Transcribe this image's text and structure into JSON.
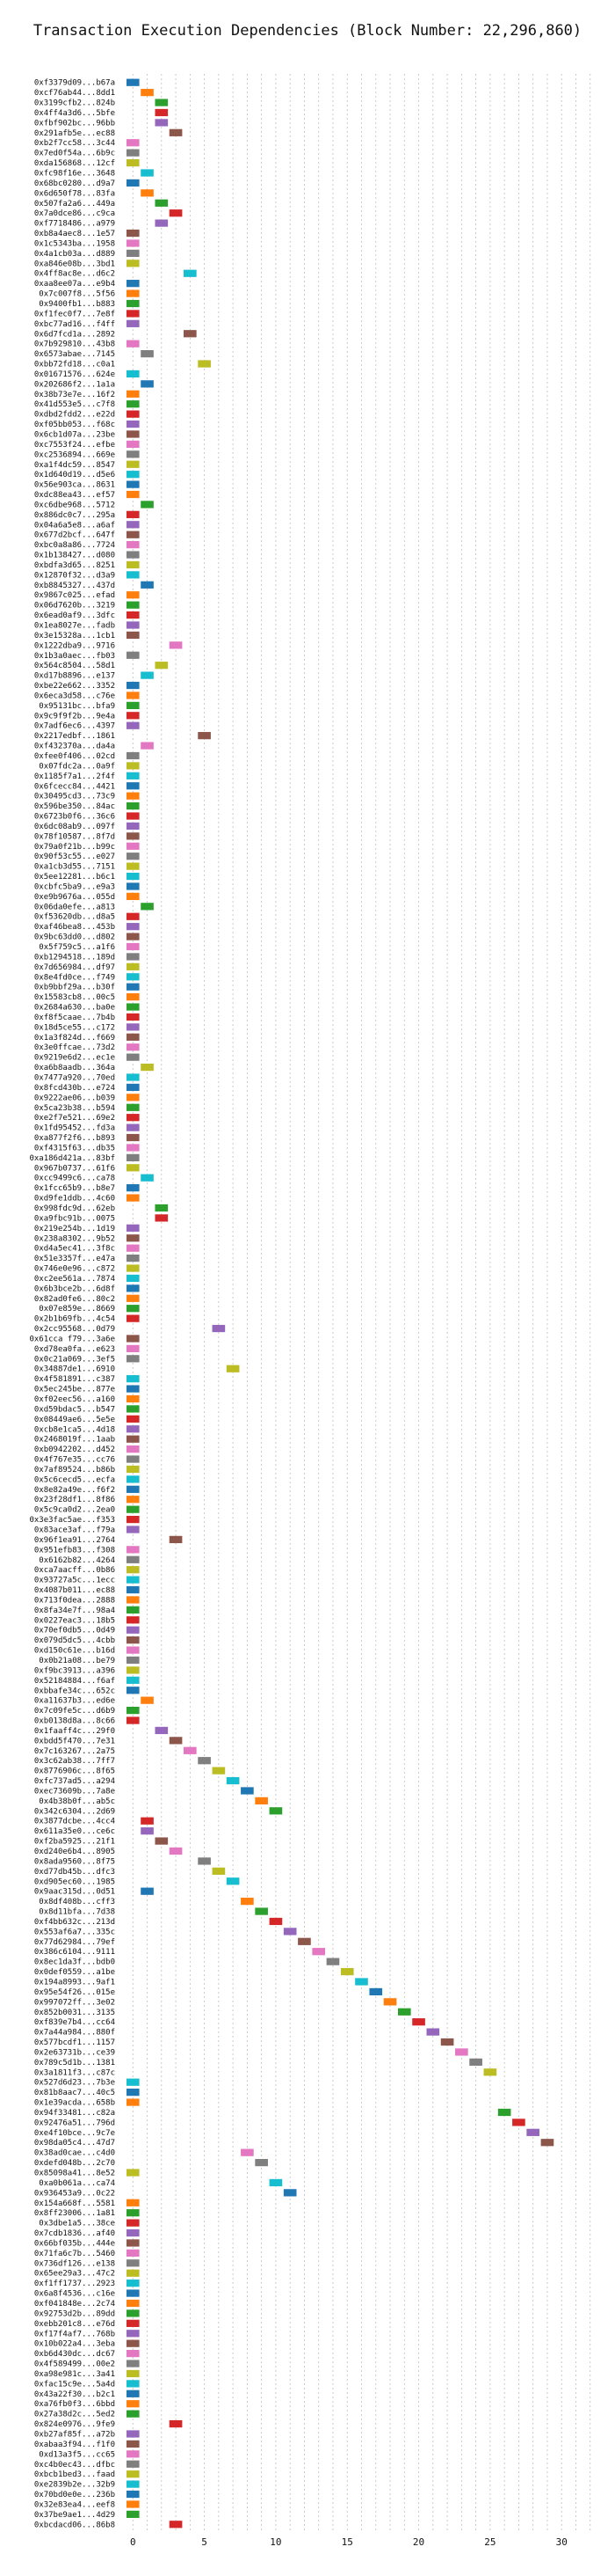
{
  "chart_data": {
    "type": "bar",
    "orientation": "horizontal-gantt",
    "title": "Transaction Execution Dependencies (Block Number: 22,296,860)",
    "xlabel": "",
    "ylabel": "",
    "xlim": [
      -1,
      33
    ],
    "xticks": [
      0,
      5,
      10,
      15,
      20,
      25,
      30
    ],
    "grid": true,
    "palette": [
      "#1f77b4",
      "#ff7f0e",
      "#2ca02c",
      "#d62728",
      "#9467bd",
      "#8c564b",
      "#e377c2",
      "#7f7f7f",
      "#bcbd22",
      "#17becf"
    ],
    "categories": [
      "0xf3379d09...b67a",
      "0xcf76ab44...8dd1",
      "0x3199cfb2...824b",
      "0x4ff4a3d6...5bfe",
      "0xfbf902bc...96bb",
      "0x291afb5e...ec88",
      "0xb2f7cc58...3c44",
      "0x7ed0f54a...6b9c",
      "0xda156868...12cf",
      "0xfc98f16e...3648",
      "0x68bc0280...d9a7",
      "0x6d650f78...83fa",
      "0x507fa2a6...449a",
      "0x7a0dce86...c9ca",
      "0xf7718486...a979",
      "0xb8a4aec8...1e57",
      "0x1c5343ba...1958",
      "0x4a1cb03a...d889",
      "0xa846e08b...3bd1",
      "0x4ff8ac8e...d6c2",
      "0xaa8ee07a...e9b4",
      "0x7c007f8...5f56",
      "0x9400fb1...b883",
      "0xf1fec0f7...7e8f",
      "0xbc77ad16...f4ff",
      "0x6d7fcd1a...2892",
      "0x7b929810...43b8",
      "0x6573abae...7145",
      "0xbb72fd18...c0a1",
      "0x01671576...624e",
      "0x202686f2...1a1a",
      "0x38b73e7e...16f2",
      "0x41d553e5...c7f8",
      "0xdbd2fdd2...e22d",
      "0xf05bb053...f68c",
      "0x6cb1d07a...23be",
      "0xc7553f24...efbe",
      "0xc2536894...669e",
      "0xa1f4dc59...8547",
      "0x1d640d19...d5e6",
      "0x56e903ca...8631",
      "0xdc88ea43...ef57",
      "0xc6dbe968...5712",
      "0x886dc0c7...295a",
      "0x04a6a5e8...a6af",
      "0x677d2bcf...647f",
      "0xbc0a8a86...7724",
      "0x1b138427...d080",
      "0xbdfa3d65...8251",
      "0x12870f32...d3a9",
      "0xb8845327...437d",
      "0x9867c025...efad",
      "0x06d7620b...3219",
      "0x6ead0af9...3dfc",
      "0x1ea8027e...fadb",
      "0x3e15328a...1cb1",
      "0x1222dba9...9716",
      "0x1b3a0aec...fb03",
      "0x564c8504...58d1",
      "0xd17b8896...e137",
      "0xbe22e662...3352",
      "0x6eca3d58...c76e",
      "0x95131bc...bfa9",
      "0x9c9f9f2b...9e4a",
      "0x7adf6ec6...4397",
      "0x2217edbf...1861",
      "0xf432370a...da4a",
      "0xfee0f406...02cd",
      "0x07fdc2a...0a9f",
      "0x1185f7a1...2f4f",
      "0x6fcecc84...4421",
      "0x30495cd3...73c9",
      "0x596be350...84ac",
      "0x6723b0f6...36c6",
      "0x6dc08ab9...097f",
      "0x78f10587...8f7d",
      "0x79a0f21b...b99c",
      "0x90f53c55...e027",
      "0xa1cb3d55...7151",
      "0x5ee12281...b6c1",
      "0xcbfc5ba9...e9a3",
      "0xe9b9676a...055d",
      "0x06da0efe...a813",
      "0xf53620db...d8a5",
      "0xaf46bea8...453b",
      "0x9bc63dd0...d802",
      "0x5f759c5...a1f6",
      "0xb1294518...189d",
      "0x7d656984...df97",
      "0x8e4fd0ce...f749",
      "0xb9bbf29a...b30f",
      "0x15583cb8...00c5",
      "0x2684a630...ba0e",
      "0xf8f5caae...7b4b",
      "0x18d5ce55...c172",
      "0x1a3f824d...f669",
      "0x3e0ffcae...73d2",
      "0x9219e6d2...ec1e",
      "0xa6b8aadb...364a",
      "0x7477a920...70ed",
      "0x8fcd430b...e724",
      "0x9222ae06...b039",
      "0x5ca23b38...b594",
      "0xe2f7e521...69e2",
      "0x1fd95452...fd3a",
      "0xa877f2f6...b893",
      "0xf4315f63...db35",
      "0xa186d421a...83bf",
      "0x967b0737...61f6",
      "0xcc9499c6...ca78",
      "0x1fcc65b9...b8e7",
      "0xd9fe1ddb...4c60",
      "0x998fdc9d...62eb",
      "0xa9fbc91b...0075",
      "0x219e254b...1d19",
      "0x238a8302...9b52",
      "0xd4a5ec41...3f8c",
      "0x51e3357f...e47a",
      "0x746e0e96...c872",
      "0xc2ee561a...7874",
      "0x6b3bce2b...6d8f",
      "0x82ad0fe6...80c2",
      "0x07e859e...8669",
      "0x2b1b69fb...4c54",
      "0x2cc95568...0d79",
      "0x61cca f79...3a6e",
      "0xd78ea0fa...e623",
      "0x0c21a069...3ef5",
      "0x34887de1...6910",
      "0x4f581891...c387",
      "0x5ec245be...877e",
      "0xf02eec56...a160",
      "0xd59bdac5...b547",
      "0x08449ae6...5e5e",
      "0xcb8e1ca5...4d18",
      "0x2468019f...1aab",
      "0xb0942202...d452",
      "0x4f767e35...cc76",
      "0x7af89524...b86b",
      "0x5c6cecd5...ecfa",
      "0x8e82a49e...f6f2",
      "0x23f28df1...8f86",
      "0x5c9ca0d2...2ea0",
      "0x3e3fac5ae...f353",
      "0x83ace3af...f79a",
      "0x96f1ea91...2764",
      "0x951efb83...f308",
      "0x6162b82...4264",
      "0xca7aacff...0b86",
      "0x93727a5c...1ecc",
      "0x4087b011...ec88",
      "0x713f0dea...2888",
      "0x8fa34e7f...98a4",
      "0x0227eac3...18b5",
      "0x70ef0db5...0d49",
      "0x079d5dc5...4cbb",
      "0xd150c61e...b16d",
      "0x0b21a08...be79",
      "0xf9bc3913...a396",
      "0x52184884...f6af",
      "0xbbafe34c...652c",
      "0xa11637b3...ed6e",
      "0x7c09fe5c...d6b9",
      "0xb0138d8a...8c66",
      "0x1faaff4c...29f0",
      "0xbdd5f470...7e31",
      "0x7c163267...2a75",
      "0x3c62ab38...7ff7",
      "0x8776906c...8f65",
      "0xfc737ad5...a294",
      "0xec73609b...7a8e",
      "0x4b38b0f...ab5c",
      "0x342c6304...2d69",
      "0x3877dcbe...4cc4",
      "0x611a35e0...ce6c",
      "0xf2ba5925...21f1",
      "0xd240e6b4...8905",
      "0x8ada9560...8f75",
      "0xd77db45b...dfc3",
      "0xd905ec60...1985",
      "0x9aac315d...0d51",
      "0x8df408b...cff3",
      "0x8d11bfa...7d38",
      "0xf4bb632c...213d",
      "0x553af6a7...335c",
      "0x77d62984...79ef",
      "0x386c6104...9111",
      "0x8ec1da3f...bdb0",
      "0x0def0559...a1be",
      "0x194a8993...9af1",
      "0x95e54f26...015e",
      "0x997072ff...3e02",
      "0x852b0031...3135",
      "0xf839e7b4...cc64",
      "0x7a44a984...880f",
      "0x577bcdf1...1157",
      "0x2e63731b...ce39",
      "0x789c5d1b...1381",
      "0x3a1811f3...c87c",
      "0x527d6d23...7b3e",
      "0x81b8aac7...40c5",
      "0x1e39acda...658b",
      "0x94f33481...c82a",
      "0x92476a51...796d",
      "0xe4f10bce...9c7e",
      "0x98da05c4...47d7",
      "0x38ad0cae...c4d0",
      "0xdefd048b...2c70",
      "0x85098a41...8e52",
      "0xa0b061a...ca74",
      "0x936453a9...0c22",
      "0x154a668f...5581",
      "0x8ff23006...1a81",
      "0x3dbe1a5...38ce",
      "0x7cdb1836...af40",
      "0x66bf035b...444e",
      "0x71fa6c7b...5460",
      "0x736df126...e138",
      "0x65ee29a3...47c2",
      "0xf1ff1737...2923",
      "0x6a8f4536...c16e",
      "0xf041848e...2c74",
      "0x92753d2b...89dd",
      "0xebb201c8...e76d",
      "0xf17f4af7...768b",
      "0x10b022a4...3eba",
      "0xb6d430dc...dc67",
      "0x4f589499...00e2",
      "0xa98e981c...3a41",
      "0xfac15c9e...5a4d",
      "0x43a22f30...b2c1",
      "0xa76fb0f3...6bbd",
      "0x27a38d2c...5ed2",
      "0x824e0976...9fe9",
      "0xb27af85f...a72b",
      "0xabaa3f94...f1f0",
      "0xd13a3f5...cc65",
      "0xc4b0ec43...dfbc",
      "0xbcb1bed3...faad",
      "0xe2839b2e...32b9",
      "0x70bd0e0e...236b",
      "0x32e83ea4...eef8",
      "0x37be9ae1...4d29",
      "0xbcdacd06...86b8"
    ],
    "start_values": [
      0,
      1,
      2,
      2,
      2,
      3,
      0,
      0,
      0,
      1,
      0,
      1,
      2,
      3,
      2,
      0,
      0,
      0,
      0,
      4,
      0,
      0,
      0,
      0,
      0,
      4,
      0,
      1,
      5,
      0,
      1,
      0,
      0,
      0,
      0,
      0,
      0,
      0,
      0,
      0,
      0,
      0,
      1,
      0,
      0,
      0,
      0,
      0,
      0,
      0,
      1,
      0,
      0,
      0,
      0,
      0,
      3,
      0,
      2,
      1,
      0,
      0,
      0,
      0,
      0,
      5,
      1,
      0,
      0,
      0,
      0,
      0,
      0,
      0,
      0,
      0,
      0,
      0,
      0,
      0,
      0,
      0,
      1,
      0,
      0,
      0,
      0,
      0,
      0,
      0,
      0,
      0,
      0,
      0,
      0,
      0,
      0,
      0,
      1,
      0,
      0,
      0,
      0,
      0,
      0,
      0,
      0,
      0,
      0,
      1,
      0,
      0,
      2,
      2,
      0,
      0,
      0,
      0,
      0,
      0,
      0,
      0,
      0,
      0,
      6,
      0,
      0,
      0,
      7,
      0,
      0,
      0,
      0,
      0,
      0,
      0,
      0,
      0,
      0,
      0,
      0,
      0,
      0,
      0,
      0,
      3,
      0,
      0,
      0,
      0,
      0,
      0,
      0,
      0,
      0,
      0,
      0,
      0,
      0,
      0,
      0,
      1,
      0,
      0,
      2,
      3,
      4,
      5,
      6,
      7,
      8,
      9,
      10,
      1,
      1,
      2,
      3,
      5,
      6,
      7,
      1,
      8,
      9,
      10,
      11,
      12,
      13,
      14,
      15,
      16,
      17,
      18,
      19,
      20,
      21,
      22,
      23,
      24,
      25,
      0,
      0,
      0,
      26,
      27,
      28,
      29,
      8,
      9,
      0,
      10,
      11,
      0,
      0,
      0,
      0,
      0,
      0,
      0,
      0,
      0,
      0,
      0,
      0,
      0,
      0,
      0,
      0,
      0,
      0,
      0,
      0,
      0,
      0,
      3,
      0,
      0,
      0,
      0,
      0,
      0,
      0,
      0,
      0,
      3
    ],
    "duration": 1
  }
}
